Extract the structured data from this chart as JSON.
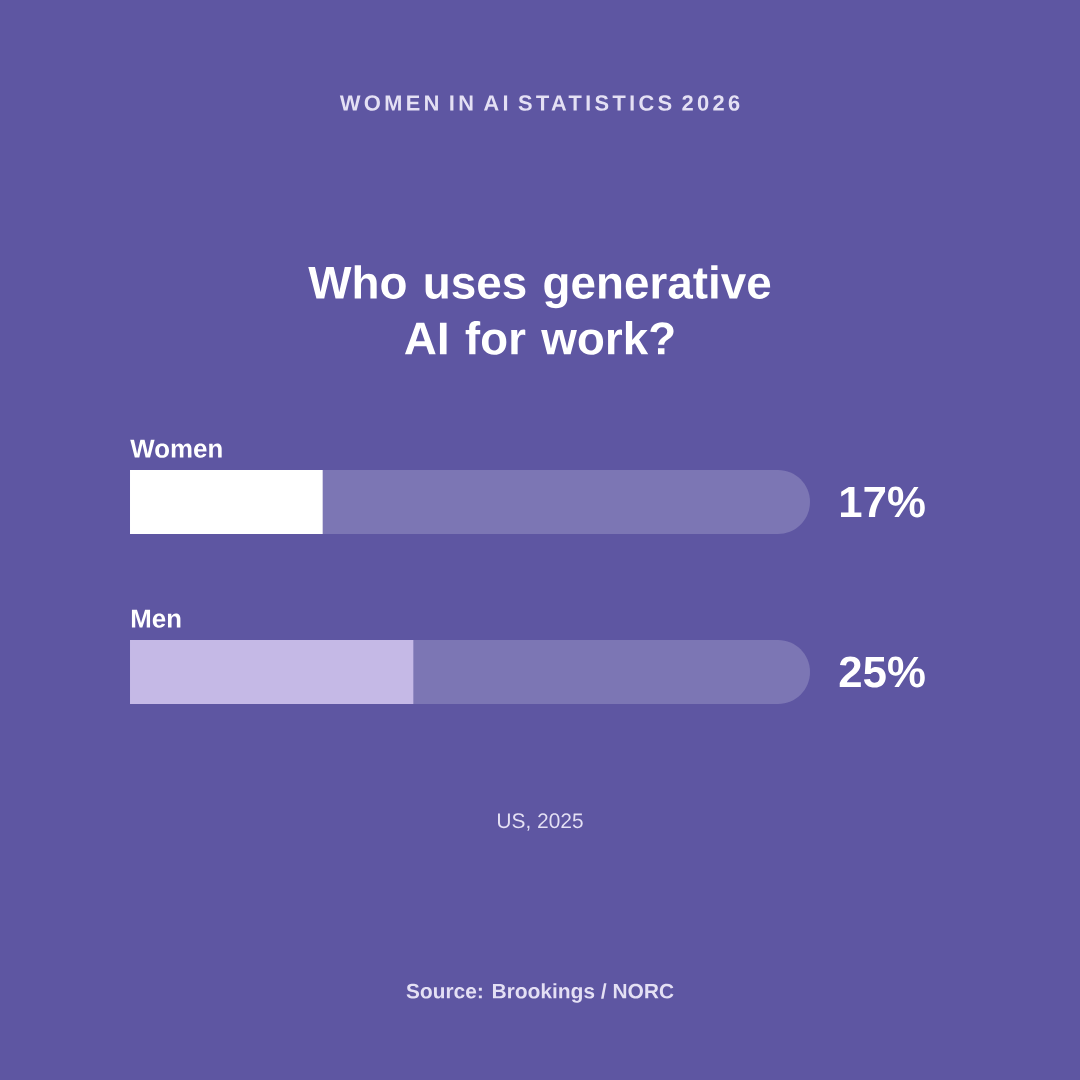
{
  "chart_data": {
    "type": "bar",
    "orientation": "horizontal",
    "title": "WOMEN IN AI STATISTICS 2026",
    "subtitle": "Who uses generative AI for work?",
    "categories": [
      "Women",
      "Men"
    ],
    "values": [
      17,
      25
    ],
    "colors": [
      "#ffffff",
      "#c5b9e6"
    ],
    "value_labels": [
      "17%",
      "25%"
    ],
    "xlim": [
      0,
      60
    ],
    "bands": [
      {
        "axis": "x",
        "from": 0,
        "to": 60,
        "color": "#7c76b4"
      },
      {
        "axis": "x",
        "from": 0,
        "to": 60,
        "color": "#7c76b4"
      }
    ],
    "annotations": [
      "US, 2025",
      "Source: Brookings / NORC"
    ]
  }
}
